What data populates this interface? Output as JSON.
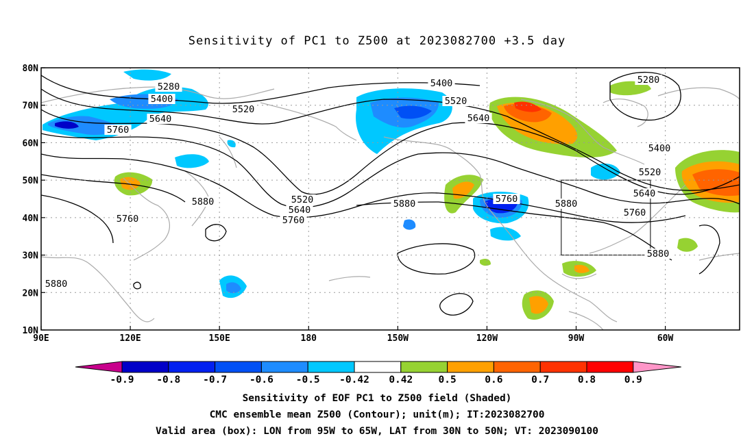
{
  "title": "Sensitivity of PC1 to Z500 at 2023082700 +3.5 day",
  "lat_labels": [
    "80N",
    "70N",
    "60N",
    "50N",
    "40N",
    "30N",
    "20N",
    "10N"
  ],
  "lon_labels": [
    "90E",
    "120E",
    "150E",
    "180",
    "150W",
    "120W",
    "90W",
    "60W"
  ],
  "contour_labels": [
    {
      "text": "5280"
    },
    {
      "text": "5400"
    },
    {
      "text": "5520"
    },
    {
      "text": "5640"
    },
    {
      "text": "5760"
    },
    {
      "text": "5400"
    },
    {
      "text": "5520"
    },
    {
      "text": "5640"
    },
    {
      "text": "5280"
    },
    {
      "text": "5400"
    },
    {
      "text": "5520"
    },
    {
      "text": "5640"
    },
    {
      "text": "5760"
    },
    {
      "text": "5880"
    },
    {
      "text": "5880"
    },
    {
      "text": "5760"
    },
    {
      "text": "5880"
    },
    {
      "text": "5520"
    },
    {
      "text": "5640"
    },
    {
      "text": "5760"
    },
    {
      "text": "5880"
    },
    {
      "text": "5760"
    },
    {
      "text": "5880"
    }
  ],
  "colorbar": {
    "labels": [
      "-0.9",
      "-0.8",
      "-0.7",
      "-0.6",
      "-0.5",
      "-0.42",
      "0.42",
      "0.5",
      "0.6",
      "0.7",
      "0.8",
      "0.9"
    ],
    "colors": [
      "#c8008c",
      "#0000c8",
      "#0020f0",
      "#0050f5",
      "#1e8cff",
      "#00c8ff",
      "#ffffff",
      "#96d232",
      "#ffa000",
      "#ff6400",
      "#ff3200",
      "#ff0000",
      "#ff96c8"
    ]
  },
  "valid_box": {
    "lon": [
      -95,
      -65
    ],
    "lat": [
      30,
      50
    ]
  },
  "caption_lines": [
    "Sensitivity of EOF PC1 to Z500 field (Shaded)",
    "CMC ensemble mean Z500 (Contour); unit(m); IT:2023082700",
    "Valid area (box): LON from 95W to 65W, LAT from 30N to 50N; VT: 2023090100"
  ]
}
